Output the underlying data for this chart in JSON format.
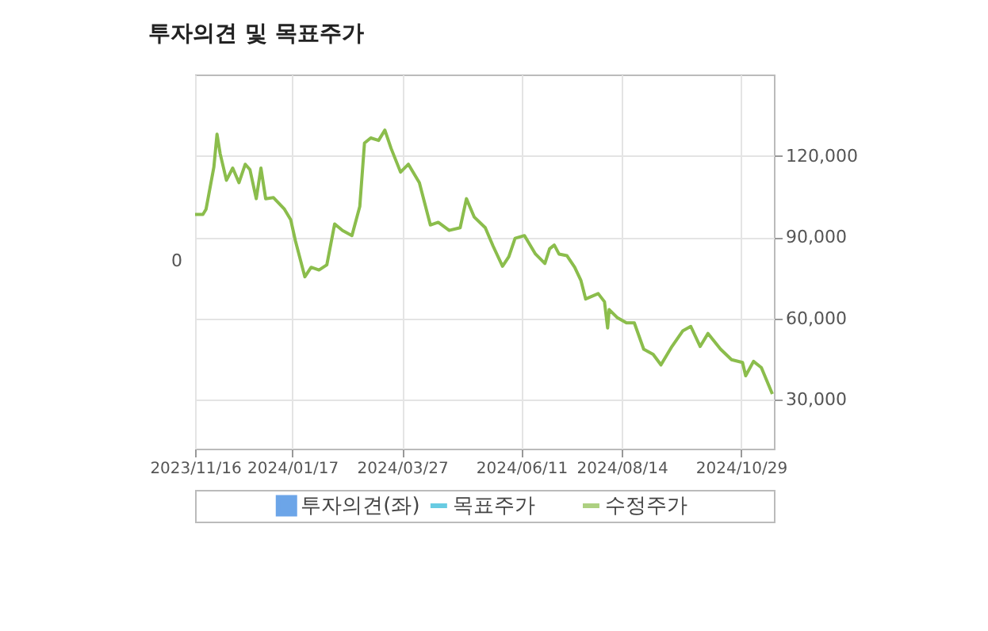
{
  "chart_data": {
    "type": "line",
    "title": "투자의견 및 목표주가",
    "x": [
      "2023-11-16",
      "2023-11-21",
      "2023-11-23",
      "2023-11-28",
      "2023-11-30",
      "2023-12-02",
      "2023-12-06",
      "2023-12-10",
      "2023-12-14",
      "2023-12-18",
      "2023-12-21",
      "2023-12-25",
      "2023-12-28",
      "2023-12-31",
      "2024-01-05",
      "2024-01-12",
      "2024-01-16",
      "2024-01-19",
      "2024-01-25",
      "2024-01-29",
      "2024-02-03",
      "2024-02-08",
      "2024-02-13",
      "2024-02-18",
      "2024-02-24",
      "2024-02-29",
      "2024-03-03",
      "2024-03-07",
      "2024-03-12",
      "2024-03-16",
      "2024-03-20",
      "2024-03-26",
      "2024-03-31",
      "2024-04-07",
      "2024-04-14",
      "2024-04-19",
      "2024-04-26",
      "2024-05-03",
      "2024-05-07",
      "2024-05-12",
      "2024-05-19",
      "2024-05-24",
      "2024-05-30",
      "2024-06-03",
      "2024-06-07",
      "2024-06-13",
      "2024-06-20",
      "2024-06-26",
      "2024-06-29",
      "2024-07-02",
      "2024-07-05",
      "2024-07-10",
      "2024-07-15",
      "2024-07-19",
      "2024-07-22",
      "2024-07-30",
      "2024-08-03",
      "2024-08-05",
      "2024-08-06",
      "2024-08-11",
      "2024-08-17",
      "2024-08-22",
      "2024-08-28",
      "2024-09-03",
      "2024-09-08",
      "2024-09-15",
      "2024-09-22",
      "2024-09-27",
      "2024-10-03",
      "2024-10-08",
      "2024-10-16",
      "2024-10-23",
      "2024-10-30",
      "2024-11-01",
      "2024-11-06",
      "2024-11-11",
      "2024-11-18"
    ],
    "series": [
      {
        "name": "투자의견(좌)",
        "type": "bar",
        "color": "#2f7fdf",
        "values": [
          null,
          null,
          null,
          null,
          null,
          null,
          null,
          null,
          null,
          null,
          null,
          null,
          null,
          null,
          null,
          null,
          null,
          null,
          null,
          null,
          null,
          null,
          null,
          null,
          null,
          null,
          null,
          null,
          null,
          null,
          null,
          null,
          null,
          null,
          null,
          null,
          null,
          null,
          null,
          null,
          null,
          null,
          null,
          null,
          null,
          null,
          null,
          null,
          null,
          null,
          null,
          null,
          null,
          null,
          null,
          null,
          null,
          null,
          null,
          null,
          null,
          null,
          null,
          null,
          null,
          null,
          null,
          null,
          null,
          null,
          null,
          null,
          null,
          null,
          null,
          null,
          null
        ]
      },
      {
        "name": "목표주가",
        "type": "line",
        "color": "#29b6d6",
        "axis": "y2",
        "values": [
          null,
          null,
          null,
          null,
          null,
          null,
          null,
          null,
          null,
          null,
          null,
          null,
          null,
          null,
          null,
          null,
          null,
          null,
          null,
          null,
          null,
          null,
          null,
          null,
          null,
          null,
          null,
          null,
          null,
          null,
          null,
          null,
          null,
          null,
          null,
          null,
          null,
          null,
          null,
          null,
          null,
          null,
          null,
          null,
          null,
          null,
          null,
          null,
          null,
          null,
          null,
          null,
          null,
          null,
          null,
          null,
          null,
          null,
          null,
          null,
          null,
          null,
          null,
          null,
          null,
          null,
          null,
          null,
          null,
          null,
          null,
          null,
          null,
          null,
          null,
          null,
          null
        ]
      },
      {
        "name": "수정주가",
        "color": "#8bbd4c",
        "axis": "y2",
        "values": [
          98400,
          98400,
          100300,
          115900,
          128000,
          120800,
          111000,
          115500,
          110100,
          116900,
          114900,
          104200,
          115500,
          104200,
          104600,
          100300,
          96400,
          88600,
          75400,
          78900,
          77900,
          79800,
          94900,
          92500,
          90600,
          101300,
          124700,
          126600,
          125700,
          129500,
          122700,
          114000,
          116900,
          110100,
          94500,
          95500,
          92500,
          93500,
          104200,
          97400,
          93500,
          86700,
          79300,
          82800,
          89600,
          90600,
          83800,
          80300,
          85700,
          87100,
          83800,
          83200,
          78900,
          74000,
          67200,
          69200,
          66200,
          56500,
          63300,
          60400,
          58400,
          58400,
          48700,
          46800,
          42900,
          49700,
          55500,
          57100,
          49700,
          54500,
          48700,
          44800,
          43800,
          38900,
          44200,
          41900,
          32200
        ]
      }
    ],
    "xlim": [
      "2023-11-16",
      "2024-11-19"
    ],
    "xticks": [
      {
        "value": "2023-11-16",
        "label": "2023/11/16"
      },
      {
        "value": "2024-01-17",
        "label": "2024/01/17"
      },
      {
        "value": "2024-03-27",
        "label": "2024/03/27"
      },
      {
        "value": "2024-06-11",
        "label": "2024/06/11"
      },
      {
        "value": "2024-08-14",
        "label": "2024/08/14"
      },
      {
        "value": "2024-10-29",
        "label": "2024/10/29"
      }
    ],
    "annotations": [
      "0"
    ],
    "y2lim": [
      12000,
      150000
    ],
    "y2ticks": [
      {
        "value": 30000,
        "label": "30,000"
      },
      {
        "value": 60000,
        "label": "60,000"
      },
      {
        "value": 90000,
        "label": "90,000"
      },
      {
        "value": 120000,
        "label": "120,000"
      }
    ],
    "grid": true,
    "legend": "bottom",
    "line_style": "solid",
    "marker": "none"
  }
}
